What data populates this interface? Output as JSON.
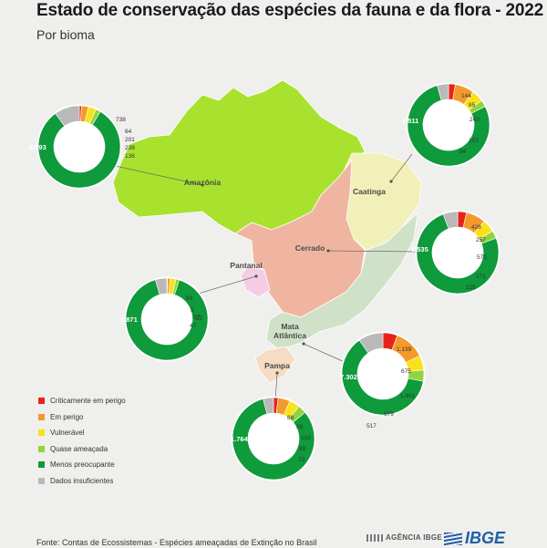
{
  "title": "Estado de conservação das espécies da fauna e da flora - 2022",
  "subtitle": "Por bioma",
  "source": "Fonte: Contas de Ecossistemas - Espécies ameaçadas de Extinção no Brasil",
  "logos": {
    "agency": "AGÊNCIA IBGE",
    "ibge": "IBGE"
  },
  "colors": {
    "critically_endangered": "#e8221b",
    "endangered": "#f39a2b",
    "vulnerable": "#f9e21b",
    "near_threatened": "#93d33e",
    "least_concern": "#0f9a3b",
    "data_deficient": "#b9b9b9"
  },
  "legend": [
    {
      "key": "critically_endangered",
      "label": "Criticamente em perigo"
    },
    {
      "key": "endangered",
      "label": "Em perigo"
    },
    {
      "key": "vulnerable",
      "label": "Vulnerável"
    },
    {
      "key": "near_threatened",
      "label": "Quase ameaçada"
    },
    {
      "key": "least_concern",
      "label": "Menos preocupante"
    },
    {
      "key": "data_deficient",
      "label": "Dados insuficientes"
    }
  ],
  "map_colors": {
    "amazonia": "#a8e22e",
    "caatinga": "#f1f0b8",
    "cerrado": "#f0b5a0",
    "pantanal": "#f3cde6",
    "mata_atlantica": "#cfe2c8",
    "pampa": "#f6dcc2"
  },
  "chart_data": {
    "type": "pie",
    "categories": [
      "Criticamente em perigo",
      "Em perigo",
      "Vulnerável",
      "Quase ameaçada",
      "Menos preocupante",
      "Dados insuficientes"
    ],
    "series": [
      {
        "name": "Amazônia",
        "values": [
          64,
          201,
          238,
          136,
          6093,
          738
        ],
        "labels": [
          "64",
          "201",
          "238",
          "136",
          "6.093",
          "738"
        ]
      },
      {
        "name": "Caatinga",
        "values": [
          85,
          243,
          153,
          84,
          2511,
          144
        ],
        "labels": [
          "85",
          "243",
          "153",
          "84",
          "2.511",
          "144"
        ]
      },
      {
        "name": "Cerrado",
        "values": [
          257,
          571,
          371,
          225,
          5535,
          426
        ],
        "labels": [
          "257",
          "571",
          "371",
          "225",
          "5.535",
          "426"
        ]
      },
      {
        "name": "Pantanal",
        "values": [
          5,
          22,
          47,
          27,
          1871,
          93
        ],
        "labels": [
          "5",
          "22",
          "47",
          "27",
          "1.871",
          "93"
        ]
      },
      {
        "name": "Mata Atlântica",
        "values": [
          675,
          1401,
          679,
          517,
          7302,
          1139
        ],
        "labels": [
          "675",
          "1.401",
          "679",
          "517",
          "7.302",
          "1.139"
        ]
      },
      {
        "name": "Pampa",
        "values": [
          39,
          102,
          88,
          72,
          1764,
          88
        ],
        "labels": [
          "39",
          "102",
          "88",
          "72",
          "1.764",
          "88"
        ]
      }
    ]
  }
}
